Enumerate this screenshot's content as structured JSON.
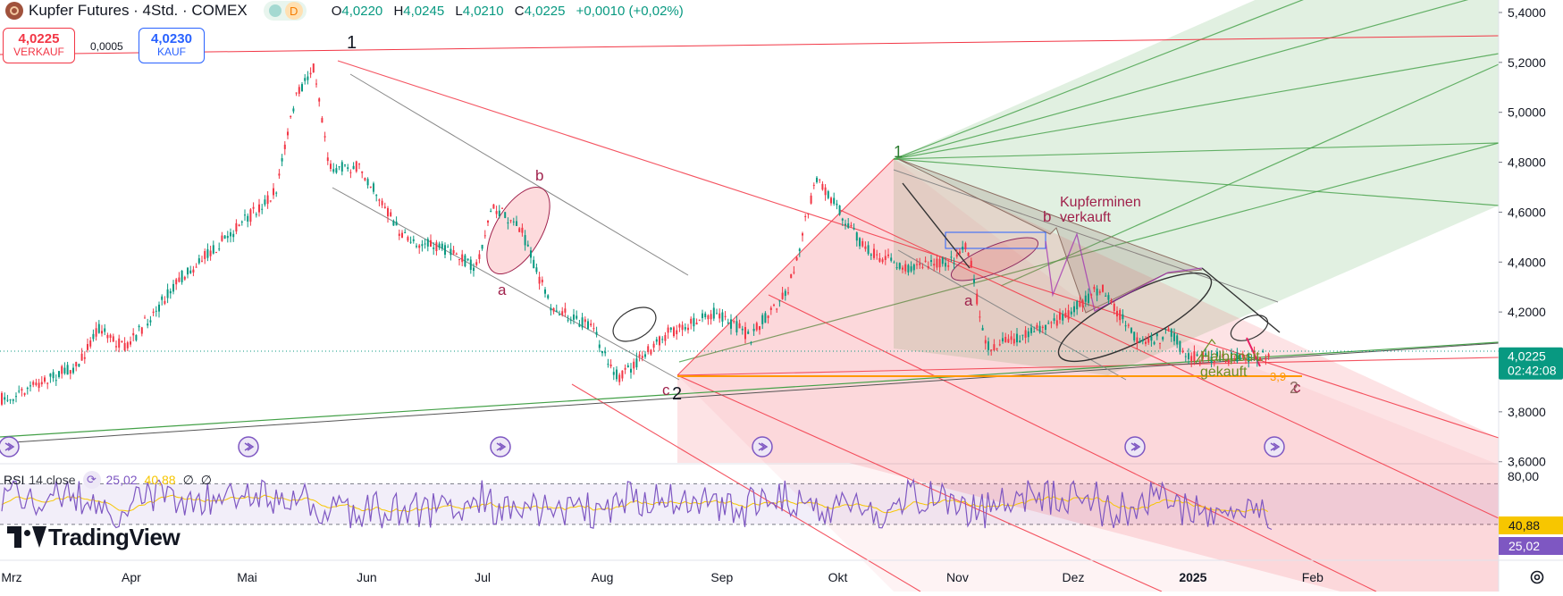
{
  "header": {
    "symbol_title": "Kupfer Futures · 4Std. · COMEX",
    "interval_badge": "D",
    "ohlc": {
      "o_label": "O",
      "o_value": "4,0220",
      "h_label": "H",
      "h_value": "4,0245",
      "l_label": "L",
      "l_value": "4,0210",
      "c_label": "C",
      "c_value": "4,0225",
      "change": "+0,0010 (+0,02%)"
    }
  },
  "trade": {
    "sell_price": "4,0225",
    "sell_label": "VERKAUF",
    "buy_price": "4,0230",
    "buy_label": "KAUF",
    "spread": "0,0005"
  },
  "price_axis": {
    "ticks": [
      "5,4000",
      "5,2000",
      "5,0000",
      "4,8000",
      "4,6000",
      "4,4000",
      "4,2000",
      "4,0000",
      "3,8000",
      "3,6000"
    ],
    "current_price": "4,0225",
    "countdown": "02:42:08"
  },
  "time_axis": {
    "labels": [
      "Mrz",
      "Apr",
      "Mai",
      "Jun",
      "Jul",
      "Aug",
      "Sep",
      "Okt",
      "Nov",
      "Dez",
      "2025",
      "Feb"
    ]
  },
  "annotations": {
    "wave_1_black": "1",
    "wave_2_black": "2",
    "wave_1_green": "1",
    "wave_b_left": "b",
    "wave_a_left": "a",
    "wave_c_left": "c",
    "wave_b_right": "b",
    "wave_a_right": "a",
    "wave_c_right": "c",
    "wave_2_right": "2",
    "note_kupferminen": "Kupferminen\nverkauft",
    "note_halbposit": "Halbposit.\ngekauft",
    "note_level": "3,9"
  },
  "rsi": {
    "title": "RSI",
    "params": "14 close",
    "value": "25,02",
    "ma_value": "40,88",
    "na1": "∅",
    "na2": "∅",
    "axis_top": "80,00",
    "label_ma": "40,88",
    "label_rsi": "25,02"
  },
  "branding": {
    "name": "TradingView"
  },
  "colors": {
    "up": "#089981",
    "down": "#f23645",
    "rsi": "#7e57c2",
    "rsi_ma": "#f7c600",
    "pitchfork_red": "#f23645",
    "pitchfork_green": "#43a047",
    "accent": "#2962ff"
  },
  "chart_data": {
    "type": "candlestick",
    "title": "Kupfer Futures · 4Std. · COMEX",
    "x_range": [
      "2024-03-01",
      "2025-02-28"
    ],
    "y_range": [
      3.58,
      5.42
    ],
    "path_points": [
      {
        "date": "2024-03-01",
        "price": 3.85
      },
      {
        "date": "2024-03-20",
        "price": 3.99
      },
      {
        "date": "2024-03-25",
        "price": 4.14
      },
      {
        "date": "2024-04-01",
        "price": 4.05
      },
      {
        "date": "2024-04-15",
        "price": 4.33
      },
      {
        "date": "2024-05-01",
        "price": 4.55
      },
      {
        "date": "2024-05-10",
        "price": 4.68
      },
      {
        "date": "2024-05-15",
        "price": 5.05
      },
      {
        "date": "2024-05-20",
        "price": 5.19
      },
      {
        "date": "2024-05-24",
        "price": 4.78
      },
      {
        "date": "2024-06-01",
        "price": 4.78
      },
      {
        "date": "2024-06-12",
        "price": 4.5
      },
      {
        "date": "2024-06-24",
        "price": 4.44
      },
      {
        "date": "2024-07-01",
        "price": 4.38
      },
      {
        "date": "2024-07-05",
        "price": 4.62
      },
      {
        "date": "2024-07-12",
        "price": 4.55
      },
      {
        "date": "2024-07-20",
        "price": 4.23
      },
      {
        "date": "2024-07-31",
        "price": 4.13
      },
      {
        "date": "2024-08-07",
        "price": 3.93
      },
      {
        "date": "2024-08-20",
        "price": 4.12
      },
      {
        "date": "2024-09-01",
        "price": 4.2
      },
      {
        "date": "2024-09-10",
        "price": 4.1
      },
      {
        "date": "2024-09-20",
        "price": 4.3
      },
      {
        "date": "2024-09-27",
        "price": 4.73
      },
      {
        "date": "2024-10-01",
        "price": 4.65
      },
      {
        "date": "2024-10-10",
        "price": 4.45
      },
      {
        "date": "2024-10-20",
        "price": 4.38
      },
      {
        "date": "2024-11-01",
        "price": 4.4
      },
      {
        "date": "2024-11-05",
        "price": 4.48
      },
      {
        "date": "2024-11-10",
        "price": 4.06
      },
      {
        "date": "2024-11-20",
        "price": 4.1
      },
      {
        "date": "2024-12-01",
        "price": 4.19
      },
      {
        "date": "2024-12-10",
        "price": 4.3
      },
      {
        "date": "2024-12-20",
        "price": 4.06
      },
      {
        "date": "2024-12-28",
        "price": 4.12
      },
      {
        "date": "2025-01-01",
        "price": 4.02
      }
    ],
    "rsi": {
      "period": 14,
      "source": "close",
      "last_value": 25.02,
      "ma_last_value": 40.88,
      "band_upper": 70,
      "band_lower": 30,
      "axis_top": 80
    },
    "current_price": 4.0225
  }
}
